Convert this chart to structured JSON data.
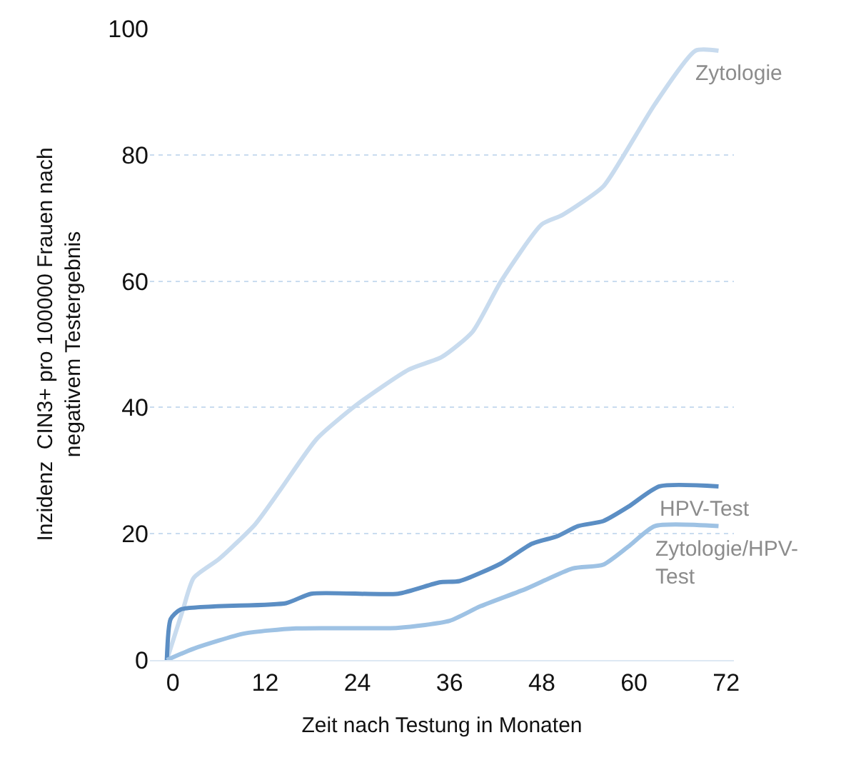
{
  "chart_data": {
    "type": "line",
    "xlabel": "Zeit nach Testung in Monaten",
    "ylabel": "Inzidenz  CIN3+ pro 100000 Frauen nach\nnegativem Testergebnis",
    "xlim": [
      -3,
      73
    ],
    "xticks": [
      0,
      12,
      24,
      36,
      48,
      60,
      72
    ],
    "ylim": [
      0,
      100
    ],
    "yticks": [
      0,
      20,
      40,
      60,
      80,
      100
    ],
    "grid": "y",
    "legend": false,
    "marker": "none",
    "line_style": "solid",
    "series": [
      {
        "name": "Zytologie",
        "color": "#c8dbee",
        "x": [
          -0.8,
          1.3,
          2.7,
          6,
          10.7,
          14,
          18.7,
          24,
          30.7,
          35,
          39,
          42.7,
          48,
          50.7,
          56,
          58.7,
          62.7,
          68,
          71
        ],
        "values": [
          0,
          8,
          13,
          16,
          21.5,
          27,
          35,
          40.5,
          46,
          48,
          52,
          60,
          69,
          70.5,
          75,
          80,
          88,
          96.5,
          96.5
        ]
      },
      {
        "name": "HPV-Test",
        "color": "#5b8ec4",
        "x": [
          -0.8,
          -0.3,
          1,
          14.7,
          18,
          29.3,
          34.7,
          37.3,
          42.7,
          46.7,
          50,
          52.7,
          56,
          59.3,
          63.3,
          71
        ],
        "values": [
          0,
          6.5,
          8,
          9,
          10.5,
          10.5,
          12.3,
          12.5,
          15.3,
          18.4,
          19.6,
          21.2,
          22,
          24.3,
          27.5,
          27.5
        ]
      },
      {
        "name": "Zytologie/HPV-Test",
        "color": "#9ec2e4",
        "x": [
          -0.8,
          2.7,
          9.3,
          16,
          29.3,
          36,
          40,
          46,
          52,
          56,
          59.3,
          62.7,
          71
        ],
        "values": [
          0,
          1.8,
          4.2,
          5,
          5.1,
          6.2,
          8.5,
          11.3,
          14.5,
          15.1,
          18,
          21.2,
          21.2
        ]
      }
    ]
  }
}
